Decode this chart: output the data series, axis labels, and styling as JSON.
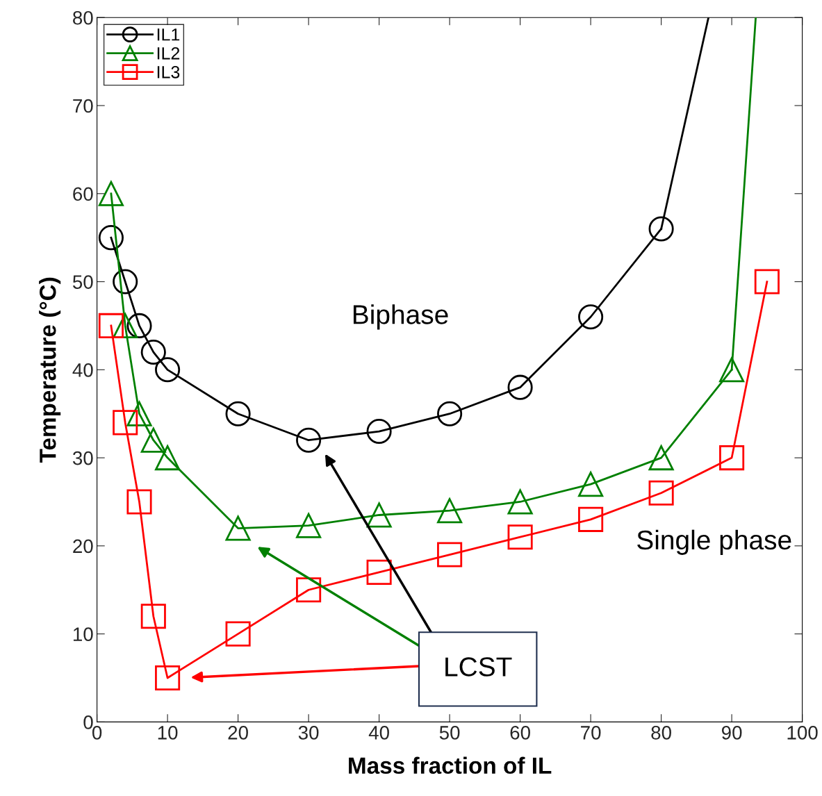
{
  "chart_data": {
    "type": "line",
    "xlabel": "Mass fraction of IL",
    "ylabel": "Temperature (°C)",
    "xlim": [
      0,
      100
    ],
    "ylim": [
      0,
      80
    ],
    "xticks": [
      0,
      10,
      20,
      30,
      40,
      50,
      60,
      70,
      80,
      90,
      100
    ],
    "yticks": [
      0,
      10,
      20,
      30,
      40,
      50,
      60,
      70,
      80
    ],
    "grid": false,
    "legend": "top left",
    "line_style": "solid",
    "series": [
      {
        "name": "IL1",
        "color": "#000000",
        "marker": "circle",
        "x": [
          2,
          4,
          6,
          8,
          10,
          20,
          30,
          40,
          50,
          60,
          70,
          80
        ],
        "values": [
          55,
          50,
          45,
          42,
          40,
          35,
          32,
          33,
          35,
          38,
          46,
          56
        ]
      },
      {
        "name": "IL2",
        "color": "#008000",
        "marker": "triangle",
        "x": [
          2,
          4,
          6,
          8,
          10,
          20,
          30,
          40,
          50,
          60,
          70,
          80,
          90
        ],
        "values": [
          60,
          45,
          35,
          32,
          30,
          22,
          22.3,
          23.5,
          24,
          25,
          27,
          30,
          40
        ]
      },
      {
        "name": "IL3",
        "color": "#ff0000",
        "marker": "square",
        "x": [
          2,
          4,
          6,
          8,
          10,
          20,
          30,
          40,
          50,
          60,
          70,
          80,
          90,
          95
        ],
        "values": [
          45,
          34,
          25,
          12,
          5,
          10,
          15,
          17,
          19,
          21,
          23,
          26,
          30,
          50
        ]
      },
      {
        "color": "#000000",
        "marker": "none",
        "x": [
          80,
          86.7
        ],
        "values": [
          56,
          80
        ]
      },
      {
        "color": "#008000",
        "marker": "none",
        "x": [
          90,
          93.4
        ],
        "values": [
          40,
          80
        ]
      }
    ],
    "annotations": [
      "Biphase",
      "Single phase",
      "LCST"
    ]
  }
}
